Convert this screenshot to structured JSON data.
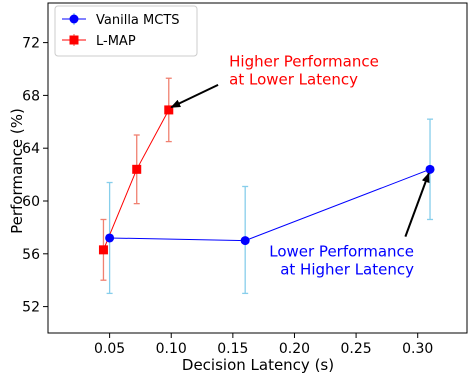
{
  "chart_data": {
    "type": "line",
    "title": "",
    "xlabel": "Decision Latency (s)",
    "ylabel": "Performance (%)",
    "xlim": [
      0.0,
      0.34
    ],
    "ylim": [
      50.0,
      75.0
    ],
    "xticks": [
      0.05,
      0.1,
      0.15,
      0.2,
      0.25,
      0.3
    ],
    "xtick_labels": [
      "0.05",
      "0.10",
      "0.15",
      "0.20",
      "0.25",
      "0.30"
    ],
    "yticks": [
      52,
      56,
      60,
      64,
      68,
      72
    ],
    "ytick_labels": [
      "52",
      "56",
      "60",
      "64",
      "68",
      "72"
    ],
    "grid": false,
    "legend_position": "top-left",
    "series": [
      {
        "name": "Vanilla MCTS",
        "color": "#0000ff",
        "errorbar_color": "#87ceeb",
        "marker": "circle",
        "points": [
          {
            "x": 0.05,
            "y": 57.2,
            "err_low": 53.0,
            "err_high": 61.4
          },
          {
            "x": 0.16,
            "y": 57.0,
            "err_low": 53.0,
            "err_high": 61.1
          },
          {
            "x": 0.31,
            "y": 62.4,
            "err_low": 58.6,
            "err_high": 66.2
          }
        ]
      },
      {
        "name": "L-MAP",
        "color": "#ff0000",
        "errorbar_color": "#f08070",
        "marker": "square",
        "points": [
          {
            "x": 0.045,
            "y": 56.3,
            "err_low": 54.0,
            "err_high": 58.6
          },
          {
            "x": 0.072,
            "y": 62.4,
            "err_low": 59.8,
            "err_high": 65.0
          },
          {
            "x": 0.098,
            "y": 66.9,
            "err_low": 64.5,
            "err_high": 69.3
          }
        ]
      }
    ],
    "annotations": [
      {
        "lines": [
          "Higher Performance",
          "at Lower Latency"
        ],
        "color": "#ff0000",
        "text_x": 0.147,
        "text_y": 70.2,
        "align": "start",
        "arrow_to_x": 0.1,
        "arrow_to_y": 67.1,
        "arrow_from_x": 0.138,
        "arrow_from_y": 68.8
      },
      {
        "lines": [
          "Lower Performance",
          "at Higher Latency"
        ],
        "color": "#0000ff",
        "text_x": 0.297,
        "text_y": 55.8,
        "align": "end",
        "arrow_to_x": 0.309,
        "arrow_to_y": 62.1,
        "arrow_from_x": 0.29,
        "arrow_from_y": 57.3
      }
    ]
  }
}
